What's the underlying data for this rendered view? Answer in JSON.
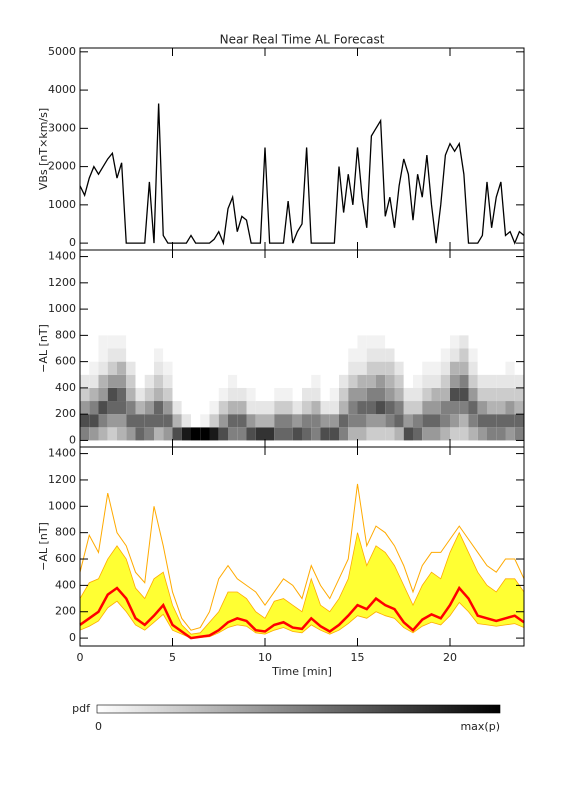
{
  "chart_data": [
    {
      "type": "line",
      "title": "Near Real Time AL Forecast",
      "y_label": "VBs [nT×km/s]",
      "x": [
        0,
        0.25,
        0.5,
        0.75,
        1,
        1.25,
        1.5,
        1.75,
        2,
        2.25,
        2.5,
        2.75,
        3,
        3.25,
        3.5,
        3.75,
        4,
        4.25,
        4.5,
        4.75,
        5,
        5.25,
        5.5,
        5.75,
        6,
        6.25,
        6.5,
        6.75,
        7,
        7.25,
        7.5,
        7.75,
        8,
        8.25,
        8.5,
        8.75,
        9,
        9.25,
        9.5,
        9.75,
        10,
        10.25,
        10.5,
        10.75,
        11,
        11.25,
        11.5,
        11.75,
        12,
        12.25,
        12.5,
        12.75,
        13,
        13.25,
        13.5,
        13.75,
        14,
        14.25,
        14.5,
        14.75,
        15,
        15.25,
        15.5,
        15.75,
        16,
        16.25,
        16.5,
        16.75,
        17,
        17.25,
        17.5,
        17.75,
        18,
        18.25,
        18.5,
        18.75,
        19,
        19.25,
        19.5,
        19.75,
        20,
        20.25,
        20.5,
        20.75,
        21,
        21.25,
        21.5,
        21.75,
        22,
        22.25,
        22.5,
        22.75,
        23,
        23.25,
        23.5,
        23.75,
        24
      ],
      "values": [
        1500,
        1250,
        1700,
        2000,
        1800,
        2000,
        2200,
        2350,
        1700,
        2100,
        0,
        0,
        0,
        0,
        0,
        1600,
        0,
        3650,
        200,
        0,
        0,
        0,
        0,
        0,
        200,
        0,
        0,
        0,
        0,
        100,
        300,
        0,
        900,
        1200,
        300,
        700,
        600,
        0,
        0,
        0,
        2500,
        0,
        0,
        0,
        0,
        1100,
        0,
        300,
        500,
        2500,
        0,
        0,
        0,
        0,
        0,
        0,
        2000,
        800,
        1800,
        1000,
        2500,
        1200,
        400,
        2800,
        3000,
        3200,
        700,
        1200,
        400,
        1500,
        2200,
        1800,
        600,
        1800,
        1200,
        2300,
        1000,
        0,
        1000,
        2300,
        2600,
        2400,
        2600,
        1800,
        0,
        0,
        0,
        200,
        1600,
        400,
        1200,
        1600,
        200,
        300,
        0,
        300,
        200
      ],
      "color": "#000000",
      "xlim": [
        0,
        24
      ],
      "xticks": [
        0,
        5,
        10,
        15,
        20
      ],
      "ylim": [
        -180,
        5100
      ],
      "yticks": [
        0,
        1000,
        2000,
        3000,
        4000,
        5000
      ]
    },
    {
      "type": "heatmap",
      "y_label": "−AL [nT]",
      "x_bins": [
        0,
        0.5,
        1,
        1.5,
        2,
        2.5,
        3,
        3.5,
        4,
        4.5,
        5,
        5.5,
        6,
        6.5,
        7,
        7.5,
        8,
        8.5,
        9,
        9.5,
        10,
        10.5,
        11,
        11.5,
        12,
        12.5,
        13,
        13.5,
        14,
        14.5,
        15,
        15.5,
        16,
        16.5,
        17,
        17.5,
        18,
        18.5,
        19,
        19.5,
        20,
        20.5,
        21,
        21.5,
        22,
        22.5,
        23,
        23.5,
        24
      ],
      "y_bins": [
        0,
        100,
        200,
        300,
        400,
        500,
        600,
        700,
        800
      ],
      "values": [
        [
          0.5,
          0.7,
          0.4,
          0.2,
          0.1,
          0,
          0,
          0
        ],
        [
          0.4,
          0.7,
          0.5,
          0.3,
          0.1,
          0.05,
          0,
          0
        ],
        [
          0.3,
          0.5,
          0.7,
          0.4,
          0.3,
          0.1,
          0.05,
          0.05
        ],
        [
          0.2,
          0.4,
          0.6,
          0.7,
          0.4,
          0.2,
          0.1,
          0.05
        ],
        [
          0.3,
          0.4,
          0.6,
          0.6,
          0.4,
          0.3,
          0.1,
          0.05
        ],
        [
          0.4,
          0.6,
          0.5,
          0.3,
          0.2,
          0.1,
          0,
          0
        ],
        [
          0.6,
          0.6,
          0.3,
          0.1,
          0,
          0,
          0,
          0
        ],
        [
          0.5,
          0.6,
          0.4,
          0.2,
          0.1,
          0,
          0,
          0
        ],
        [
          0.3,
          0.6,
          0.6,
          0.3,
          0.2,
          0.1,
          0.05,
          0
        ],
        [
          0.4,
          0.6,
          0.4,
          0.2,
          0.1,
          0.05,
          0,
          0
        ],
        [
          0.7,
          0.3,
          0.1,
          0,
          0,
          0,
          0,
          0
        ],
        [
          0.9,
          0.1,
          0,
          0,
          0,
          0,
          0,
          0
        ],
        [
          1,
          0,
          0,
          0,
          0,
          0,
          0,
          0
        ],
        [
          1,
          0.05,
          0,
          0,
          0,
          0,
          0,
          0
        ],
        [
          0.9,
          0.2,
          0.05,
          0,
          0,
          0,
          0,
          0
        ],
        [
          0.7,
          0.4,
          0.2,
          0.05,
          0,
          0,
          0,
          0
        ],
        [
          0.5,
          0.6,
          0.3,
          0.1,
          0.05,
          0,
          0,
          0
        ],
        [
          0.5,
          0.6,
          0.3,
          0.1,
          0,
          0,
          0,
          0
        ],
        [
          0.7,
          0.4,
          0.1,
          0.05,
          0,
          0,
          0,
          0
        ],
        [
          0.8,
          0.3,
          0.1,
          0,
          0,
          0,
          0,
          0
        ],
        [
          0.8,
          0.3,
          0.1,
          0,
          0,
          0,
          0,
          0
        ],
        [
          0.6,
          0.5,
          0.2,
          0.05,
          0,
          0,
          0,
          0
        ],
        [
          0.6,
          0.5,
          0.2,
          0.05,
          0,
          0,
          0,
          0
        ],
        [
          0.7,
          0.4,
          0.1,
          0,
          0,
          0,
          0,
          0
        ],
        [
          0.6,
          0.5,
          0.2,
          0.1,
          0,
          0,
          0,
          0
        ],
        [
          0.5,
          0.5,
          0.3,
          0.1,
          0.05,
          0,
          0,
          0
        ],
        [
          0.7,
          0.4,
          0.1,
          0,
          0,
          0,
          0,
          0
        ],
        [
          0.7,
          0.4,
          0.1,
          0.05,
          0,
          0,
          0,
          0
        ],
        [
          0.5,
          0.6,
          0.3,
          0.2,
          0.1,
          0,
          0,
          0
        ],
        [
          0.3,
          0.5,
          0.5,
          0.4,
          0.2,
          0.1,
          0.05,
          0
        ],
        [
          0.3,
          0.5,
          0.6,
          0.4,
          0.3,
          0.1,
          0.05,
          0.05
        ],
        [
          0.2,
          0.4,
          0.6,
          0.5,
          0.3,
          0.2,
          0.1,
          0.05
        ],
        [
          0.2,
          0.4,
          0.7,
          0.5,
          0.4,
          0.2,
          0.1,
          0.05
        ],
        [
          0.2,
          0.5,
          0.6,
          0.4,
          0.3,
          0.2,
          0.1,
          0
        ],
        [
          0.3,
          0.6,
          0.5,
          0.3,
          0.2,
          0.1,
          0,
          0
        ],
        [
          0.7,
          0.4,
          0.2,
          0.1,
          0,
          0,
          0,
          0
        ],
        [
          0.6,
          0.5,
          0.2,
          0.1,
          0.05,
          0,
          0,
          0
        ],
        [
          0.4,
          0.6,
          0.4,
          0.2,
          0.1,
          0.05,
          0,
          0
        ],
        [
          0.4,
          0.6,
          0.4,
          0.3,
          0.1,
          0.05,
          0,
          0
        ],
        [
          0.3,
          0.5,
          0.5,
          0.3,
          0.2,
          0.1,
          0.05,
          0
        ],
        [
          0.2,
          0.4,
          0.5,
          0.7,
          0.4,
          0.3,
          0.1,
          0.05
        ],
        [
          0.2,
          0.3,
          0.5,
          0.7,
          0.5,
          0.3,
          0.2,
          0.1
        ],
        [
          0.3,
          0.5,
          0.6,
          0.4,
          0.2,
          0.1,
          0.05,
          0
        ],
        [
          0.4,
          0.6,
          0.4,
          0.2,
          0.1,
          0,
          0,
          0
        ],
        [
          0.5,
          0.6,
          0.3,
          0.2,
          0.1,
          0,
          0,
          0
        ],
        [
          0.5,
          0.6,
          0.3,
          0.2,
          0.1,
          0,
          0,
          0
        ],
        [
          0.4,
          0.6,
          0.4,
          0.2,
          0.1,
          0.05,
          0,
          0
        ],
        [
          0.5,
          0.6,
          0.3,
          0.2,
          0.1,
          0,
          0,
          0
        ]
      ],
      "xlim": [
        0,
        24
      ],
      "xticks": [
        0,
        5,
        10,
        15,
        20
      ],
      "ylim": [
        -50,
        1450
      ],
      "yticks": [
        0,
        200,
        400,
        600,
        800,
        1000,
        1200,
        1400
      ],
      "colorbar": {
        "label": "pdf",
        "min_label": "0",
        "max_label": "max(p)"
      }
    },
    {
      "type": "band",
      "y_label": "−AL [nT]",
      "x_label": "Time [min]",
      "x": [
        0,
        0.5,
        1,
        1.5,
        2,
        2.5,
        3,
        3.5,
        4,
        4.5,
        5,
        5.5,
        6,
        6.5,
        7,
        7.5,
        8,
        8.5,
        9,
        9.5,
        10,
        10.5,
        11,
        11.5,
        12,
        12.5,
        13,
        13.5,
        14,
        14.5,
        15,
        15.5,
        16,
        16.5,
        17,
        17.5,
        18,
        18.5,
        19,
        19.5,
        20,
        20.5,
        21,
        21.5,
        22,
        22.5,
        23,
        23.5,
        24
      ],
      "band": {
        "color": "#ffff33",
        "edge_color": "#ffaa00",
        "lower": [
          60,
          90,
          130,
          230,
          280,
          200,
          100,
          60,
          120,
          180,
          60,
          30,
          0,
          5,
          10,
          40,
          80,
          100,
          90,
          40,
          30,
          60,
          80,
          50,
          40,
          100,
          60,
          30,
          60,
          110,
          170,
          150,
          200,
          170,
          150,
          80,
          40,
          90,
          120,
          100,
          170,
          270,
          200,
          110,
          100,
          90,
          100,
          110,
          80
        ],
        "upper": [
          300,
          420,
          450,
          600,
          700,
          600,
          380,
          300,
          450,
          500,
          250,
          100,
          30,
          40,
          120,
          200,
          350,
          350,
          300,
          200,
          150,
          280,
          300,
          250,
          200,
          450,
          250,
          200,
          300,
          450,
          800,
          550,
          700,
          650,
          550,
          400,
          250,
          400,
          500,
          450,
          650,
          800,
          650,
          500,
          400,
          350,
          450,
          450,
          350
        ]
      },
      "lines": [
        {
          "color": "#ffaa00",
          "width": 1,
          "values": [
            500,
            780,
            650,
            1100,
            800,
            700,
            500,
            420,
            1000,
            700,
            350,
            150,
            60,
            80,
            200,
            450,
            550,
            450,
            400,
            350,
            250,
            350,
            450,
            400,
            300,
            550,
            400,
            300,
            450,
            600,
            1170,
            700,
            850,
            800,
            700,
            550,
            350,
            550,
            650,
            650,
            750,
            850,
            750,
            650,
            550,
            500,
            600,
            600,
            450
          ]
        },
        {
          "color": "#ff0000",
          "width": 2.5,
          "values": [
            100,
            150,
            200,
            330,
            380,
            300,
            150,
            100,
            170,
            250,
            100,
            50,
            0,
            10,
            20,
            60,
            120,
            150,
            130,
            60,
            50,
            100,
            120,
            80,
            70,
            150,
            90,
            50,
            100,
            170,
            250,
            220,
            300,
            250,
            220,
            120,
            60,
            140,
            180,
            150,
            250,
            380,
            300,
            170,
            150,
            130,
            150,
            170,
            120
          ]
        }
      ],
      "xlim": [
        0,
        24
      ],
      "xticks": [
        0,
        5,
        10,
        15,
        20
      ],
      "ylim": [
        -60,
        1450
      ],
      "yticks": [
        0,
        200,
        400,
        600,
        800,
        1000,
        1200,
        1400
      ]
    }
  ]
}
